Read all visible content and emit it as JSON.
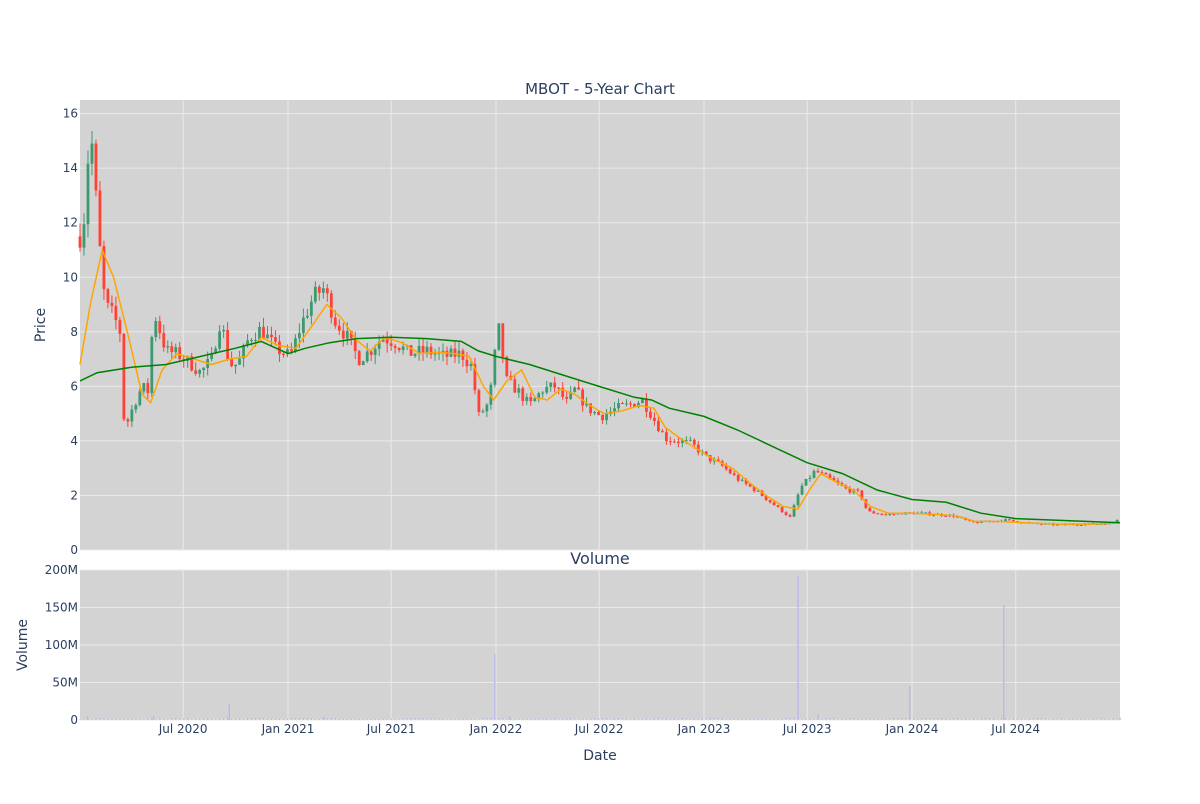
{
  "colors": {
    "plot_bg": "#d3d3d3",
    "grid": "#e9e9e9",
    "increasing": "#3d9970",
    "decreasing": "#ff4136",
    "ma_fast": "#ffa500",
    "ma_slow": "#008000",
    "volume": "#b8b8f0",
    "text": "#2a3f5f"
  },
  "chart_data": [
    {
      "type": "candlestick",
      "title": "MBOT - 5-Year Chart",
      "ylabel": "Price",
      "ylim": [
        0,
        16.5
      ],
      "y_ticks": [
        "0",
        "2",
        "4",
        "6",
        "8",
        "10",
        "12",
        "14",
        "16"
      ],
      "date_range": [
        "2020-01-02",
        "2024-12-31"
      ],
      "grid": true,
      "ohlc_keypoints": [
        [
          "2020-01-02",
          11.5
        ],
        [
          "2020-01-10",
          12.3
        ],
        [
          "2020-01-20",
          15.7
        ],
        [
          "2020-02-05",
          11.2
        ],
        [
          "2020-02-15",
          9.0
        ],
        [
          "2020-03-01",
          8.6
        ],
        [
          "2020-03-12",
          8.0
        ],
        [
          "2020-03-20",
          4.4
        ],
        [
          "2020-04-05",
          5.3
        ],
        [
          "2020-04-20",
          6.0
        ],
        [
          "2020-05-01",
          5.8
        ],
        [
          "2020-05-10",
          8.8
        ],
        [
          "2020-06-01",
          7.3
        ],
        [
          "2020-06-20",
          7.2
        ],
        [
          "2020-07-10",
          6.9
        ],
        [
          "2020-08-01",
          6.5
        ],
        [
          "2020-08-20",
          7.0
        ],
        [
          "2020-09-05",
          8.5
        ],
        [
          "2020-09-20",
          6.8
        ],
        [
          "2020-10-05",
          6.8
        ],
        [
          "2020-10-25",
          7.8
        ],
        [
          "2020-11-15",
          8.1
        ],
        [
          "2020-12-10",
          7.4
        ],
        [
          "2021-01-05",
          7.1
        ],
        [
          "2021-01-25",
          8.3
        ],
        [
          "2021-02-15",
          9.3
        ],
        [
          "2021-03-05",
          9.6
        ],
        [
          "2021-03-25",
          8.4
        ],
        [
          "2021-04-15",
          7.8
        ],
        [
          "2021-05-05",
          7.0
        ],
        [
          "2021-05-25",
          7.3
        ],
        [
          "2021-06-15",
          7.8
        ],
        [
          "2021-07-10",
          7.6
        ],
        [
          "2021-08-01",
          7.2
        ],
        [
          "2021-09-01",
          7.3
        ],
        [
          "2021-10-01",
          7.1
        ],
        [
          "2021-11-01",
          7.2
        ],
        [
          "2021-11-20",
          6.7
        ],
        [
          "2021-12-01",
          4.9
        ],
        [
          "2021-12-20",
          5.4
        ],
        [
          "2022-01-05",
          8.2
        ],
        [
          "2022-01-20",
          6.2
        ],
        [
          "2022-02-10",
          5.8
        ],
        [
          "2022-03-01",
          5.3
        ],
        [
          "2022-03-25",
          5.9
        ],
        [
          "2022-04-15",
          6.0
        ],
        [
          "2022-05-05",
          5.4
        ],
        [
          "2022-05-20",
          5.9
        ],
        [
          "2022-06-10",
          5.2
        ],
        [
          "2022-07-05",
          4.9
        ],
        [
          "2022-08-01",
          5.2
        ],
        [
          "2022-08-20",
          5.3
        ],
        [
          "2022-09-15",
          5.5
        ],
        [
          "2022-10-05",
          4.8
        ],
        [
          "2022-10-25",
          4.1
        ],
        [
          "2022-11-15",
          4.0
        ],
        [
          "2022-12-10",
          3.9
        ],
        [
          "2023-01-05",
          3.4
        ],
        [
          "2023-02-01",
          3.1
        ],
        [
          "2023-03-01",
          2.6
        ],
        [
          "2023-04-01",
          2.2
        ],
        [
          "2023-05-01",
          1.7
        ],
        [
          "2023-06-01",
          1.2
        ],
        [
          "2023-06-20",
          2.3
        ],
        [
          "2023-07-15",
          2.9
        ],
        [
          "2023-08-10",
          2.6
        ],
        [
          "2023-09-10",
          2.2
        ],
        [
          "2023-10-01",
          2.1
        ],
        [
          "2023-10-15",
          1.4
        ],
        [
          "2023-11-15",
          1.3
        ],
        [
          "2023-12-15",
          1.35
        ],
        [
          "2024-01-15",
          1.35
        ],
        [
          "2024-02-15",
          1.3
        ],
        [
          "2024-03-15",
          1.25
        ],
        [
          "2024-04-15",
          1.0
        ],
        [
          "2024-05-15",
          1.05
        ],
        [
          "2024-06-15",
          1.1
        ],
        [
          "2024-07-15",
          1.0
        ],
        [
          "2024-08-15",
          0.95
        ],
        [
          "2024-09-15",
          0.92
        ],
        [
          "2024-10-15",
          0.95
        ],
        [
          "2024-11-15",
          0.95
        ],
        [
          "2024-12-20",
          1.0
        ],
        [
          "2024-12-31",
          1.25
        ]
      ],
      "series": [
        {
          "key": "ma_fast",
          "points": [
            [
              "2020-01-02",
              6.8
            ],
            [
              "2020-01-20",
              9.0
            ],
            [
              "2020-02-10",
              11.0
            ],
            [
              "2020-03-01",
              10.0
            ],
            [
              "2020-03-25",
              8.0
            ],
            [
              "2020-04-20",
              5.7
            ],
            [
              "2020-05-05",
              5.4
            ],
            [
              "2020-05-25",
              6.6
            ],
            [
              "2020-06-20",
              7.2
            ],
            [
              "2020-07-20",
              7.0
            ],
            [
              "2020-08-20",
              6.8
            ],
            [
              "2020-09-20",
              7.0
            ],
            [
              "2020-10-20",
              7.1
            ],
            [
              "2020-11-15",
              7.8
            ],
            [
              "2020-12-15",
              7.5
            ],
            [
              "2021-01-15",
              7.4
            ],
            [
              "2021-02-15",
              8.3
            ],
            [
              "2021-03-10",
              9.0
            ],
            [
              "2021-04-05",
              8.5
            ],
            [
              "2021-05-01",
              7.7
            ],
            [
              "2021-05-25",
              7.3
            ],
            [
              "2021-06-20",
              7.8
            ],
            [
              "2021-07-20",
              7.6
            ],
            [
              "2021-08-20",
              7.2
            ],
            [
              "2021-09-20",
              7.25
            ],
            [
              "2021-10-20",
              7.2
            ],
            [
              "2021-11-15",
              7.1
            ],
            [
              "2021-12-10",
              6.0
            ],
            [
              "2021-12-28",
              5.5
            ],
            [
              "2022-01-20",
              6.2
            ],
            [
              "2022-02-15",
              6.6
            ],
            [
              "2022-03-10",
              5.6
            ],
            [
              "2022-04-01",
              5.5
            ],
            [
              "2022-04-25",
              5.9
            ],
            [
              "2022-05-20",
              5.7
            ],
            [
              "2022-06-15",
              5.3
            ],
            [
              "2022-07-10",
              5.0
            ],
            [
              "2022-08-10",
              5.1
            ],
            [
              "2022-09-10",
              5.3
            ],
            [
              "2022-10-05",
              5.2
            ],
            [
              "2022-10-25",
              4.5
            ],
            [
              "2022-11-20",
              4.1
            ],
            [
              "2022-12-20",
              3.7
            ],
            [
              "2023-01-20",
              3.3
            ],
            [
              "2023-02-20",
              3.0
            ],
            [
              "2023-03-20",
              2.5
            ],
            [
              "2023-04-20",
              2.0
            ],
            [
              "2023-05-20",
              1.6
            ],
            [
              "2023-06-15",
              1.5
            ],
            [
              "2023-07-05",
              2.2
            ],
            [
              "2023-07-25",
              2.8
            ],
            [
              "2023-08-20",
              2.5
            ],
            [
              "2023-09-20",
              2.2
            ],
            [
              "2023-10-20",
              1.6
            ],
            [
              "2023-11-20",
              1.35
            ],
            [
              "2024-01-01",
              1.35
            ],
            [
              "2024-02-15",
              1.3
            ],
            [
              "2024-03-20",
              1.25
            ],
            [
              "2024-04-20",
              1.05
            ],
            [
              "2024-06-01",
              1.05
            ],
            [
              "2024-07-15",
              1.0
            ],
            [
              "2024-09-15",
              0.95
            ],
            [
              "2024-11-15",
              0.95
            ],
            [
              "2024-12-31",
              1.0
            ]
          ]
        },
        {
          "key": "ma_slow",
          "points": [
            [
              "2020-01-02",
              6.2
            ],
            [
              "2020-02-01",
              6.5
            ],
            [
              "2020-04-01",
              6.7
            ],
            [
              "2020-06-01",
              6.8
            ],
            [
              "2020-08-01",
              7.1
            ],
            [
              "2020-10-01",
              7.4
            ],
            [
              "2020-11-15",
              7.65
            ],
            [
              "2021-01-01",
              7.2
            ],
            [
              "2021-02-01",
              7.4
            ],
            [
              "2021-03-15",
              7.6
            ],
            [
              "2021-05-01",
              7.75
            ],
            [
              "2021-07-01",
              7.8
            ],
            [
              "2021-09-01",
              7.75
            ],
            [
              "2021-11-01",
              7.65
            ],
            [
              "2021-12-01",
              7.3
            ],
            [
              "2022-01-01",
              7.1
            ],
            [
              "2022-03-01",
              6.8
            ],
            [
              "2022-05-01",
              6.4
            ],
            [
              "2022-07-01",
              6.0
            ],
            [
              "2022-09-01",
              5.6
            ],
            [
              "2022-10-01",
              5.5
            ],
            [
              "2022-11-01",
              5.2
            ],
            [
              "2023-01-01",
              4.9
            ],
            [
              "2023-03-01",
              4.4
            ],
            [
              "2023-05-01",
              3.8
            ],
            [
              "2023-07-01",
              3.2
            ],
            [
              "2023-09-01",
              2.8
            ],
            [
              "2023-11-01",
              2.2
            ],
            [
              "2024-01-01",
              1.85
            ],
            [
              "2024-03-01",
              1.75
            ],
            [
              "2024-05-01",
              1.35
            ],
            [
              "2024-07-01",
              1.15
            ],
            [
              "2024-09-01",
              1.1
            ],
            [
              "2024-11-01",
              1.05
            ],
            [
              "2024-12-31",
              1.0
            ]
          ]
        }
      ]
    },
    {
      "type": "bar",
      "title": "Volume",
      "xlabel": "Date",
      "ylabel": "Volume",
      "ylim": [
        0,
        200000000
      ],
      "y_ticks": [
        {
          "value": 0,
          "label": "0"
        },
        {
          "value": 50000000,
          "label": "50M"
        },
        {
          "value": 100000000,
          "label": "100M"
        },
        {
          "value": 150000000,
          "label": "150M"
        },
        {
          "value": 200000000,
          "label": "200M"
        }
      ],
      "x_ticks": [
        {
          "date": "2020-07-01",
          "label": "Jul 2020"
        },
        {
          "date": "2021-01-01",
          "label": "Jan 2021"
        },
        {
          "date": "2021-07-01",
          "label": "Jul 2021"
        },
        {
          "date": "2022-01-01",
          "label": "Jan 2022"
        },
        {
          "date": "2022-07-01",
          "label": "Jul 2022"
        },
        {
          "date": "2023-01-01",
          "label": "Jan 2023"
        },
        {
          "date": "2023-07-01",
          "label": "Jul 2023"
        },
        {
          "date": "2024-01-01",
          "label": "Jan 2024"
        },
        {
          "date": "2024-07-01",
          "label": "Jul 2024"
        }
      ],
      "baseline_volume": 2000000,
      "spikes": [
        [
          "2020-01-15",
          5000000
        ],
        [
          "2020-05-10",
          6000000
        ],
        [
          "2020-09-20",
          22000000
        ],
        [
          "2021-03-05",
          4000000
        ],
        [
          "2021-12-30",
          88000000
        ],
        [
          "2022-01-25",
          5000000
        ],
        [
          "2023-06-15",
          192000000
        ],
        [
          "2023-07-20",
          8000000
        ],
        [
          "2023-12-28",
          45000000
        ],
        [
          "2024-06-10",
          153000000
        ],
        [
          "2024-12-31",
          3000000
        ]
      ]
    }
  ]
}
